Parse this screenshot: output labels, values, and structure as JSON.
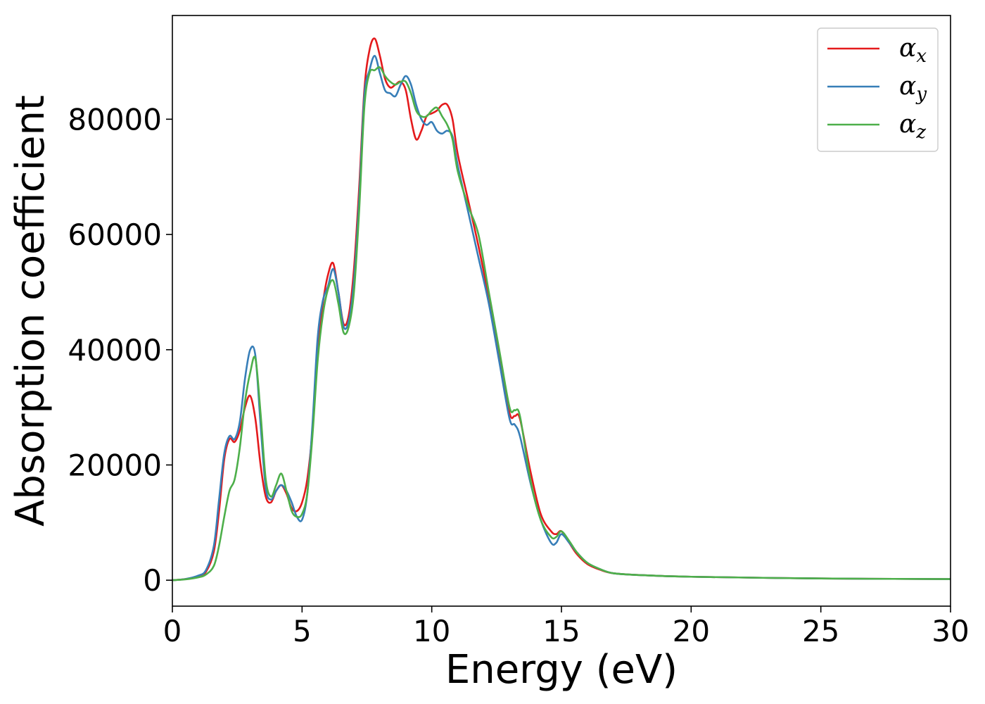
{
  "chart_data": {
    "type": "line",
    "xlabel": "Energy (eV)",
    "ylabel": "Absorption coefficient",
    "xlim": [
      0,
      30
    ],
    "ylim": [
      -4500,
      98000
    ],
    "xticks": [
      0,
      5,
      10,
      15,
      20,
      25,
      30
    ],
    "yticks": [
      0,
      20000,
      40000,
      60000,
      80000
    ],
    "grid": false,
    "legend_position": "top-right",
    "series": [
      {
        "name": "α",
        "subscript": "x",
        "color": "#e41a1c",
        "x": [
          0,
          0.5,
          1.0,
          1.3,
          1.6,
          1.8,
          2.0,
          2.2,
          2.4,
          2.6,
          2.8,
          3.0,
          3.2,
          3.4,
          3.6,
          3.8,
          4.0,
          4.2,
          4.4,
          4.6,
          4.8,
          5.0,
          5.2,
          5.4,
          5.6,
          5.8,
          6.0,
          6.2,
          6.4,
          6.6,
          6.8,
          7.0,
          7.2,
          7.4,
          7.6,
          7.8,
          8.0,
          8.2,
          8.4,
          8.6,
          8.8,
          9.0,
          9.2,
          9.4,
          9.6,
          9.8,
          10.0,
          10.2,
          10.4,
          10.6,
          10.8,
          11.0,
          11.4,
          11.8,
          12.2,
          12.6,
          13.0,
          13.2,
          13.4,
          13.8,
          14.2,
          14.6,
          14.8,
          15.0,
          15.3,
          15.6,
          16.0,
          16.5,
          17.0,
          18.0,
          20.0,
          25.0,
          30.0
        ],
        "y": [
          0,
          200,
          700,
          1500,
          5000,
          12000,
          21000,
          24500,
          24000,
          26000,
          30000,
          32000,
          28000,
          20000,
          14500,
          13500,
          15500,
          16500,
          15000,
          12500,
          12000,
          13500,
          17500,
          26000,
          40000,
          48000,
          53000,
          55000,
          50000,
          44500,
          46000,
          54000,
          68000,
          85000,
          92000,
          94000,
          91000,
          87000,
          85500,
          86000,
          86500,
          85000,
          80000,
          76500,
          78000,
          80500,
          81000,
          81500,
          82500,
          82500,
          80000,
          74000,
          66000,
          58000,
          49000,
          39000,
          29000,
          28500,
          28000,
          19000,
          11500,
          8500,
          8000,
          8500,
          6500,
          4500,
          2800,
          1800,
          1200,
          900,
          600,
          300,
          200
        ]
      },
      {
        "name": "α",
        "subscript": "y",
        "color": "#377eb8",
        "x": [
          0,
          0.5,
          1.0,
          1.3,
          1.6,
          1.8,
          2.0,
          2.2,
          2.4,
          2.6,
          2.8,
          3.0,
          3.2,
          3.4,
          3.6,
          3.8,
          4.0,
          4.2,
          4.4,
          4.6,
          4.8,
          5.0,
          5.2,
          5.4,
          5.6,
          5.8,
          6.0,
          6.2,
          6.4,
          6.6,
          6.8,
          7.0,
          7.2,
          7.4,
          7.6,
          7.8,
          8.0,
          8.2,
          8.4,
          8.6,
          8.8,
          9.0,
          9.2,
          9.4,
          9.6,
          9.8,
          10.0,
          10.2,
          10.4,
          10.6,
          10.8,
          11.0,
          11.4,
          11.8,
          12.2,
          12.6,
          13.0,
          13.2,
          13.4,
          13.8,
          14.2,
          14.6,
          14.8,
          15.0,
          15.3,
          15.6,
          16.0,
          16.5,
          17.0,
          18.0,
          20.0,
          25.0,
          30.0
        ],
        "y": [
          0,
          200,
          800,
          1800,
          6000,
          14000,
          22000,
          25000,
          24500,
          27500,
          35000,
          40000,
          39000,
          27000,
          16000,
          14000,
          15500,
          16500,
          15500,
          13500,
          11000,
          10500,
          15000,
          27000,
          42000,
          48500,
          51000,
          54000,
          50000,
          44000,
          45000,
          52000,
          66000,
          84000,
          88500,
          91000,
          88000,
          85000,
          84500,
          84000,
          86000,
          87500,
          86000,
          82500,
          80000,
          79000,
          79500,
          78000,
          77500,
          78000,
          77000,
          72000,
          64000,
          56000,
          48000,
          38000,
          28000,
          27000,
          25000,
          17000,
          10500,
          6500,
          6500,
          8000,
          6500,
          4800,
          3000,
          1900,
          1200,
          900,
          600,
          300,
          200
        ]
      },
      {
        "name": "α",
        "subscript": "z",
        "color": "#4daf4a",
        "x": [
          0,
          0.5,
          1.0,
          1.3,
          1.6,
          1.8,
          2.0,
          2.2,
          2.4,
          2.6,
          2.8,
          3.0,
          3.2,
          3.4,
          3.6,
          3.8,
          4.0,
          4.2,
          4.4,
          4.6,
          4.8,
          5.0,
          5.2,
          5.4,
          5.6,
          5.8,
          6.0,
          6.2,
          6.4,
          6.6,
          6.8,
          7.0,
          7.2,
          7.4,
          7.6,
          7.8,
          8.0,
          8.2,
          8.4,
          8.6,
          8.8,
          9.0,
          9.2,
          9.4,
          9.6,
          9.8,
          10.0,
          10.2,
          10.4,
          10.6,
          10.8,
          11.0,
          11.4,
          11.8,
          12.2,
          12.6,
          13.0,
          13.2,
          13.4,
          13.8,
          14.2,
          14.6,
          14.8,
          15.0,
          15.3,
          15.6,
          16.0,
          16.5,
          17.0,
          18.0,
          20.0,
          25.0,
          30.0
        ],
        "y": [
          0,
          150,
          500,
          1000,
          2500,
          6000,
          11000,
          15500,
          17500,
          23000,
          31000,
          36000,
          38500,
          29000,
          17500,
          14500,
          16500,
          18500,
          15500,
          12000,
          11000,
          11500,
          15000,
          25000,
          38000,
          46000,
          50500,
          52000,
          48000,
          43000,
          44000,
          50000,
          64000,
          82000,
          88000,
          88500,
          89000,
          87500,
          86500,
          86000,
          86500,
          86500,
          84500,
          81500,
          80500,
          80500,
          81500,
          82000,
          80500,
          79000,
          76500,
          71000,
          65000,
          60000,
          50000,
          40000,
          30000,
          29500,
          28500,
          17500,
          10500,
          7500,
          7500,
          8500,
          6800,
          4800,
          3000,
          1900,
          1200,
          900,
          600,
          300,
          200
        ]
      }
    ]
  }
}
